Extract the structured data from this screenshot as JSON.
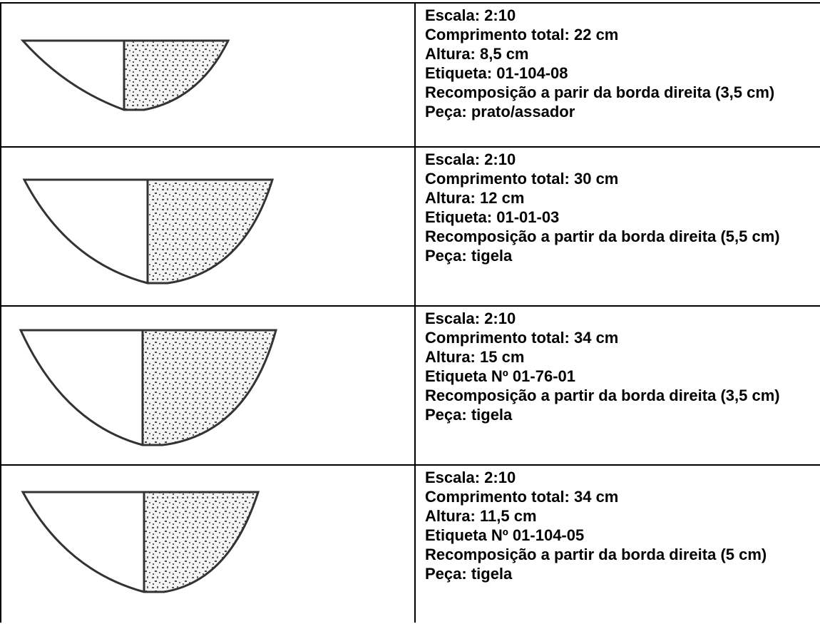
{
  "table": {
    "rows": [
      {
        "lines": [
          "Escala: 2:10",
          "Comprimento total: 22 cm",
          "Altura: 8,5 cm",
          "Etiqueta: 01-104-08",
          "Recomposição a parir da borda direita (3,5 cm)",
          "Peça: prato/assador"
        ]
      },
      {
        "lines": [
          "Escala: 2:10",
          "Comprimento total: 30 cm",
          "Altura: 12 cm",
          "Etiqueta: 01-01-03",
          "Recomposição a partir da borda direita (5,5 cm)",
          "Peça: tigela"
        ]
      },
      {
        "lines": [
          "Escala: 2:10",
          "Comprimento total: 34 cm",
          "Altura: 15 cm",
          "Etiqueta Nº 01-76-01",
          "Recomposição a partir da borda direita (3,5 cm)",
          "Peça: tigela"
        ]
      },
      {
        "lines": [
          "Escala: 2:10",
          "Comprimento total: 34 cm",
          "Altura: 11,5 cm",
          "Etiqueta Nº 01-104-05",
          "Recomposição a partir da borda direita (5 cm)",
          "Peça: tigela"
        ]
      }
    ]
  }
}
